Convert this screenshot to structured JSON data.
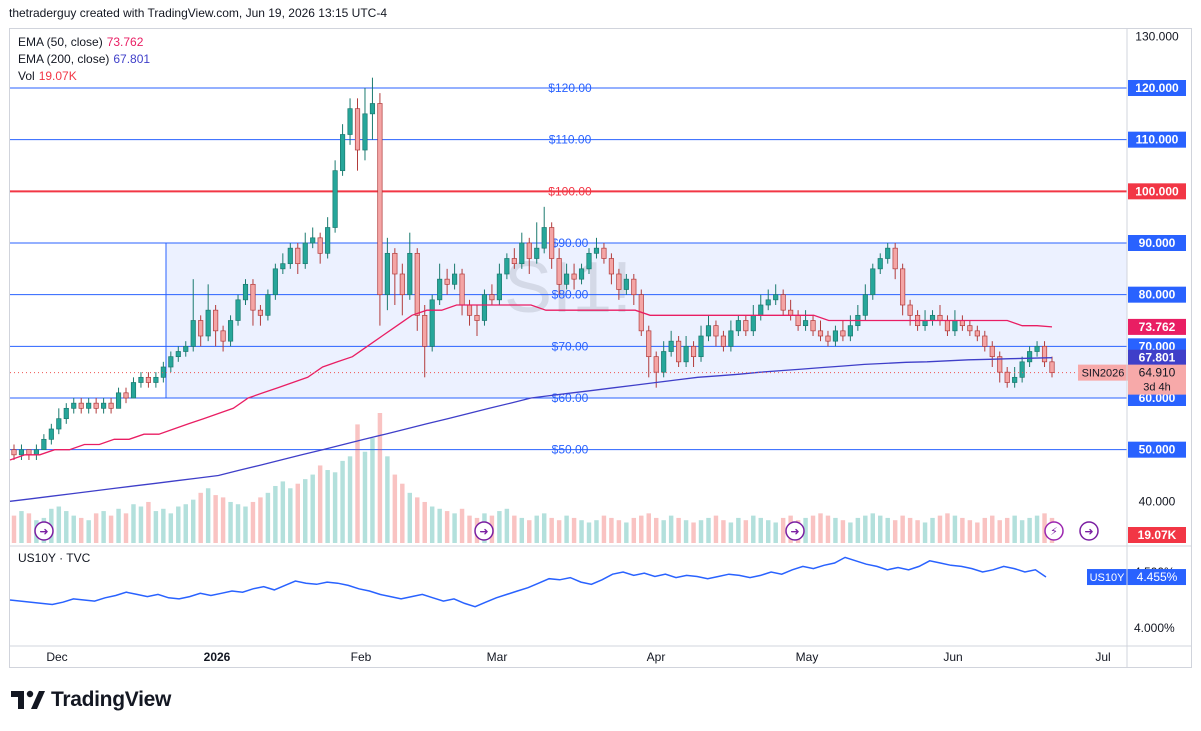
{
  "header": {
    "text": "thetraderguy created with TradingView.com, Jun 19, 2026 13:15 UTC-4"
  },
  "legend": [
    {
      "label": "EMA (50, close)",
      "value": "73.762",
      "color": "#e91e63"
    },
    {
      "label": "EMA (200, close)",
      "value": "67.801",
      "color": "#3f3fc9"
    },
    {
      "label": "Vol",
      "value": "19.07K",
      "color": "#f23645"
    }
  ],
  "symbol_watermark": "SI1!",
  "brand": "TradingView",
  "sub_pane": {
    "label": "US10Y · TVC",
    "badge_label": "US10Y",
    "badge_value": "4.455%",
    "tick_top": "4.500%",
    "tick_bottom": "4.000%",
    "color": "#2962ff"
  },
  "price_badges": {
    "ema50": {
      "value": "73.762",
      "color": "#e91e63"
    },
    "ema200": {
      "value": "67.801",
      "color": "#3f3fc9"
    },
    "last": {
      "value": "64.910",
      "symbol": "SIN2026",
      "countdown": "3d 4h",
      "color": "#f7a9a9"
    },
    "volume": {
      "value": "19.07K",
      "color": "#f23645"
    }
  },
  "chart_data": {
    "type": "candlestick",
    "y_axis_ticks": [
      "130.000",
      "120.000",
      "110.000",
      "100.000",
      "90.000",
      "80.000",
      "70.000",
      "60.000",
      "50.000",
      "40.000"
    ],
    "x_axis_ticks": [
      "Dec",
      "2026",
      "Feb",
      "Mar",
      "Apr",
      "May",
      "Jun",
      "Jul"
    ],
    "ylim": [
      34,
      130
    ],
    "horizontal_levels": [
      {
        "value": 120,
        "label": "$120.00",
        "axis_label": "120.000",
        "color": "#2962ff"
      },
      {
        "value": 110,
        "label": "$110.00",
        "axis_label": "110.000",
        "color": "#2962ff"
      },
      {
        "value": 100,
        "label": "$100.00",
        "axis_label": "100.000",
        "color": "#f23645"
      },
      {
        "value": 90,
        "label": "$90.00",
        "axis_label": "90.000",
        "color": "#2962ff"
      },
      {
        "value": 80,
        "label": "$80.00",
        "axis_label": "80.000",
        "color": "#2962ff"
      },
      {
        "value": 70,
        "label": "$70.00",
        "axis_label": "70.000",
        "color": "#2962ff"
      },
      {
        "value": 60,
        "label": "$60.00",
        "axis_label": "60.000",
        "color": "#2962ff"
      },
      {
        "value": 50,
        "label": "$50.00",
        "axis_label": "50.000",
        "color": "#2962ff"
      }
    ],
    "range_box": {
      "top": 90,
      "bottom": 60,
      "color": "#2962ff"
    },
    "candles": [
      [
        50,
        49,
        51,
        48
      ],
      [
        49,
        50,
        51,
        48
      ],
      [
        50,
        49,
        50,
        48
      ],
      [
        49,
        50,
        51,
        48
      ],
      [
        50,
        52,
        53,
        50
      ],
      [
        52,
        54,
        55,
        51
      ],
      [
        54,
        56,
        58,
        53
      ],
      [
        56,
        58,
        59,
        55
      ],
      [
        58,
        59,
        60,
        57
      ],
      [
        59,
        58,
        60,
        57
      ],
      [
        58,
        59,
        60,
        57
      ],
      [
        59,
        58,
        60,
        57
      ],
      [
        58,
        59,
        60,
        57
      ],
      [
        59,
        58,
        60,
        57
      ],
      [
        58,
        61,
        62,
        58
      ],
      [
        61,
        60,
        62,
        59
      ],
      [
        60,
        63,
        64,
        60
      ],
      [
        63,
        64,
        65,
        62
      ],
      [
        64,
        63,
        65,
        62
      ],
      [
        63,
        64,
        65,
        62
      ],
      [
        64,
        66,
        67,
        63
      ],
      [
        66,
        68,
        69,
        65
      ],
      [
        68,
        69,
        70,
        67
      ],
      [
        69,
        70,
        71,
        68
      ],
      [
        70,
        75,
        83,
        69
      ],
      [
        75,
        72,
        76,
        70
      ],
      [
        72,
        77,
        82,
        71
      ],
      [
        77,
        73,
        78,
        70
      ],
      [
        73,
        71,
        74,
        69
      ],
      [
        71,
        75,
        76,
        70
      ],
      [
        75,
        79,
        80,
        74
      ],
      [
        79,
        82,
        83,
        78
      ],
      [
        82,
        77,
        83,
        74
      ],
      [
        77,
        76,
        78,
        74
      ],
      [
        76,
        80,
        81,
        75
      ],
      [
        80,
        85,
        86,
        79
      ],
      [
        85,
        86,
        88,
        84
      ],
      [
        86,
        89,
        90,
        85
      ],
      [
        89,
        86,
        90,
        84
      ],
      [
        86,
        90,
        92,
        85
      ],
      [
        90,
        91,
        93,
        89
      ],
      [
        91,
        88,
        92,
        86
      ],
      [
        88,
        93,
        95,
        87
      ],
      [
        93,
        104,
        106,
        92
      ],
      [
        104,
        111,
        113,
        103
      ],
      [
        111,
        116,
        118,
        109
      ],
      [
        116,
        108,
        118,
        104
      ],
      [
        108,
        115,
        120,
        106
      ],
      [
        115,
        117,
        122,
        110
      ],
      [
        117,
        80,
        119,
        74
      ],
      [
        80,
        88,
        91,
        77
      ],
      [
        88,
        84,
        89,
        78
      ],
      [
        84,
        80,
        86,
        76
      ],
      [
        80,
        88,
        92,
        79
      ],
      [
        88,
        76,
        89,
        73
      ],
      [
        76,
        70,
        78,
        64
      ],
      [
        70,
        79,
        80,
        69
      ],
      [
        79,
        83,
        86,
        78
      ],
      [
        83,
        82,
        85,
        80
      ],
      [
        82,
        84,
        86,
        81
      ],
      [
        84,
        78,
        85,
        76
      ],
      [
        78,
        76,
        79,
        74
      ],
      [
        76,
        75,
        78,
        72
      ],
      [
        75,
        80,
        81,
        74
      ],
      [
        80,
        79,
        82,
        78
      ],
      [
        79,
        84,
        86,
        78
      ],
      [
        84,
        87,
        88,
        83
      ],
      [
        87,
        86,
        89,
        85
      ],
      [
        86,
        90,
        92,
        85
      ],
      [
        90,
        87,
        91,
        84
      ],
      [
        87,
        89,
        94,
        86
      ],
      [
        89,
        93,
        97,
        88
      ],
      [
        93,
        87,
        94,
        85
      ],
      [
        87,
        82,
        89,
        80
      ],
      [
        82,
        84,
        86,
        81
      ],
      [
        84,
        83,
        86,
        81
      ],
      [
        83,
        85,
        86,
        82
      ],
      [
        85,
        88,
        89,
        84
      ],
      [
        88,
        89,
        91,
        87
      ],
      [
        89,
        87,
        90,
        86
      ],
      [
        87,
        84,
        88,
        82
      ],
      [
        84,
        81,
        85,
        79
      ],
      [
        81,
        83,
        84,
        80
      ],
      [
        83,
        80,
        84,
        78
      ],
      [
        80,
        73,
        81,
        72
      ],
      [
        73,
        68,
        74,
        64
      ],
      [
        68,
        65,
        69,
        62
      ],
      [
        65,
        69,
        71,
        64
      ],
      [
        69,
        71,
        73,
        68
      ],
      [
        71,
        67,
        72,
        66
      ],
      [
        67,
        70,
        72,
        66
      ],
      [
        70,
        68,
        71,
        66
      ],
      [
        68,
        72,
        74,
        67
      ],
      [
        72,
        74,
        76,
        71
      ],
      [
        74,
        72,
        75,
        70
      ],
      [
        72,
        70,
        73,
        69
      ],
      [
        70,
        73,
        75,
        69
      ],
      [
        73,
        75,
        76,
        72
      ],
      [
        75,
        73,
        76,
        72
      ],
      [
        73,
        76,
        78,
        72
      ],
      [
        76,
        78,
        80,
        75
      ],
      [
        78,
        79,
        81,
        77
      ],
      [
        79,
        80,
        82,
        78
      ],
      [
        80,
        77,
        81,
        76
      ],
      [
        77,
        76,
        79,
        75
      ],
      [
        76,
        74,
        77,
        73
      ],
      [
        74,
        75,
        77,
        73
      ],
      [
        75,
        73,
        76,
        72
      ],
      [
        73,
        72,
        75,
        71
      ],
      [
        72,
        71,
        73,
        70
      ],
      [
        71,
        73,
        74,
        70
      ],
      [
        73,
        72,
        75,
        71
      ],
      [
        72,
        74,
        76,
        71
      ],
      [
        74,
        76,
        78,
        73
      ],
      [
        76,
        80,
        82,
        75
      ],
      [
        80,
        85,
        86,
        79
      ],
      [
        85,
        87,
        88,
        84
      ],
      [
        87,
        89,
        90,
        86
      ],
      [
        89,
        85,
        90,
        83
      ],
      [
        85,
        78,
        86,
        76
      ],
      [
        78,
        76,
        79,
        74
      ],
      [
        76,
        74,
        77,
        73
      ],
      [
        74,
        75,
        77,
        73
      ],
      [
        75,
        76,
        77,
        74
      ],
      [
        76,
        75,
        78,
        74
      ],
      [
        75,
        73,
        76,
        72
      ],
      [
        73,
        75,
        77,
        72
      ],
      [
        75,
        74,
        76,
        73
      ],
      [
        74,
        73,
        75,
        72
      ],
      [
        73,
        72,
        74,
        71
      ],
      [
        72,
        70,
        73,
        69
      ],
      [
        70,
        68,
        71,
        66
      ],
      [
        68,
        65,
        69,
        63
      ],
      [
        65,
        63,
        66,
        62
      ],
      [
        63,
        64,
        66,
        62
      ],
      [
        64,
        67,
        68,
        63
      ],
      [
        67,
        69,
        70,
        66
      ],
      [
        69,
        70,
        71,
        68
      ],
      [
        70,
        67,
        71,
        66
      ],
      [
        67,
        64.91,
        68,
        64
      ]
    ],
    "ema50": [
      48,
      49,
      49,
      50,
      50,
      51,
      51,
      52,
      52,
      53,
      53,
      54,
      55,
      56,
      57,
      58,
      60,
      61,
      62,
      63,
      64,
      66,
      67,
      68,
      70,
      72,
      74,
      76,
      77,
      77,
      78,
      78,
      78,
      78,
      78,
      78,
      77,
      77,
      77,
      77,
      77,
      77,
      77,
      76,
      76,
      76,
      76,
      76,
      76,
      76,
      76,
      76,
      76,
      76,
      76,
      75,
      75,
      75,
      75,
      75,
      75,
      75,
      75,
      75,
      75,
      75,
      75,
      75,
      74,
      74,
      73.762
    ],
    "ema200": [
      40,
      40.5,
      41,
      41.5,
      42,
      42.5,
      43,
      43.5,
      44,
      44.5,
      45,
      46,
      47,
      48,
      49,
      50,
      51,
      52,
      53,
      54,
      55,
      56,
      57,
      58,
      59,
      60,
      60.5,
      61,
      61.5,
      62,
      62.5,
      63,
      63.5,
      64,
      64.3,
      64.6,
      65,
      65.3,
      65.6,
      65.9,
      66.2,
      66.5,
      66.7,
      66.9,
      67,
      67.2,
      67.4,
      67.5,
      67.6,
      67.7,
      67.801
    ],
    "volume": [
      12,
      14,
      13,
      10,
      11,
      15,
      16,
      14,
      12,
      11,
      10,
      13,
      14,
      12,
      15,
      13,
      17,
      16,
      18,
      14,
      15,
      13,
      16,
      17,
      19,
      22,
      24,
      21,
      20,
      18,
      17,
      16,
      18,
      20,
      22,
      25,
      27,
      24,
      26,
      28,
      30,
      34,
      32,
      31,
      36,
      38,
      52,
      40,
      46,
      57,
      38,
      30,
      26,
      22,
      20,
      18,
      16,
      15,
      14,
      13,
      15,
      12,
      11,
      13,
      12,
      14,
      15,
      12,
      11,
      10,
      12,
      13,
      11,
      10,
      12,
      11,
      10,
      9,
      10,
      12,
      11,
      10,
      9,
      11,
      12,
      13,
      11,
      10,
      12,
      11,
      10,
      9,
      10,
      11,
      12,
      10,
      9,
      11,
      10,
      12,
      11,
      10,
      9,
      11,
      12,
      10,
      11,
      12,
      13,
      12,
      11,
      10,
      9,
      11,
      12,
      13,
      12,
      11,
      10,
      12,
      11,
      10,
      9,
      11,
      12,
      13,
      12,
      11,
      10,
      9,
      11,
      12,
      10,
      11,
      12,
      10,
      11,
      12,
      13,
      11
    ],
    "us10y": [
      4.25,
      4.24,
      4.23,
      4.22,
      4.21,
      4.23,
      4.26,
      4.25,
      4.24,
      4.27,
      4.29,
      4.32,
      4.3,
      4.28,
      4.3,
      4.27,
      4.26,
      4.28,
      4.31,
      4.29,
      4.31,
      4.33,
      4.32,
      4.35,
      4.37,
      4.34,
      4.38,
      4.42,
      4.4,
      4.39,
      4.41,
      4.4,
      4.38,
      4.35,
      4.33,
      4.3,
      4.28,
      4.26,
      4.28,
      4.3,
      4.27,
      4.24,
      4.26,
      4.22,
      4.19,
      4.23,
      4.27,
      4.3,
      4.33,
      4.36,
      4.4,
      4.44,
      4.43,
      4.45,
      4.41,
      4.39,
      4.43,
      4.48,
      4.5,
      4.47,
      4.49,
      4.46,
      4.48,
      4.45,
      4.47,
      4.46,
      4.44,
      4.46,
      4.48,
      4.47,
      4.45,
      4.47,
      4.5,
      4.48,
      4.52,
      4.55,
      4.53,
      4.56,
      4.58,
      4.63,
      4.6,
      4.57,
      4.55,
      4.52,
      4.54,
      4.52,
      4.55,
      4.6,
      4.58,
      4.56,
      4.55,
      4.53,
      4.5,
      4.52,
      4.55,
      4.53,
      4.5,
      4.52,
      4.455
    ]
  }
}
